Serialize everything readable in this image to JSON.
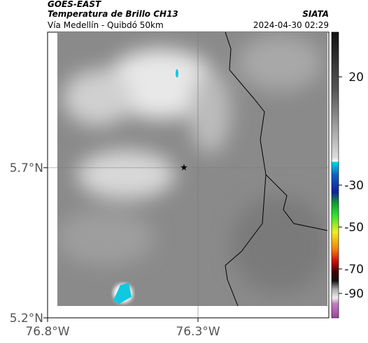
{
  "header": {
    "source": "GOES-EAST",
    "product": "Temperatura de Brillo CH13",
    "agency": "SIATA",
    "route": "Vía Medellín - Quibdó 50km",
    "timestamp": "2024-04-30 02:29"
  },
  "map": {
    "lat_ticks": [
      "5.7°N",
      "5.2°N"
    ],
    "lon_ticks": [
      "76.8°W",
      "76.3°W"
    ]
  },
  "colorbar": {
    "ticks": [
      "20",
      "-30",
      "-50",
      "-70",
      "-90"
    ]
  }
}
